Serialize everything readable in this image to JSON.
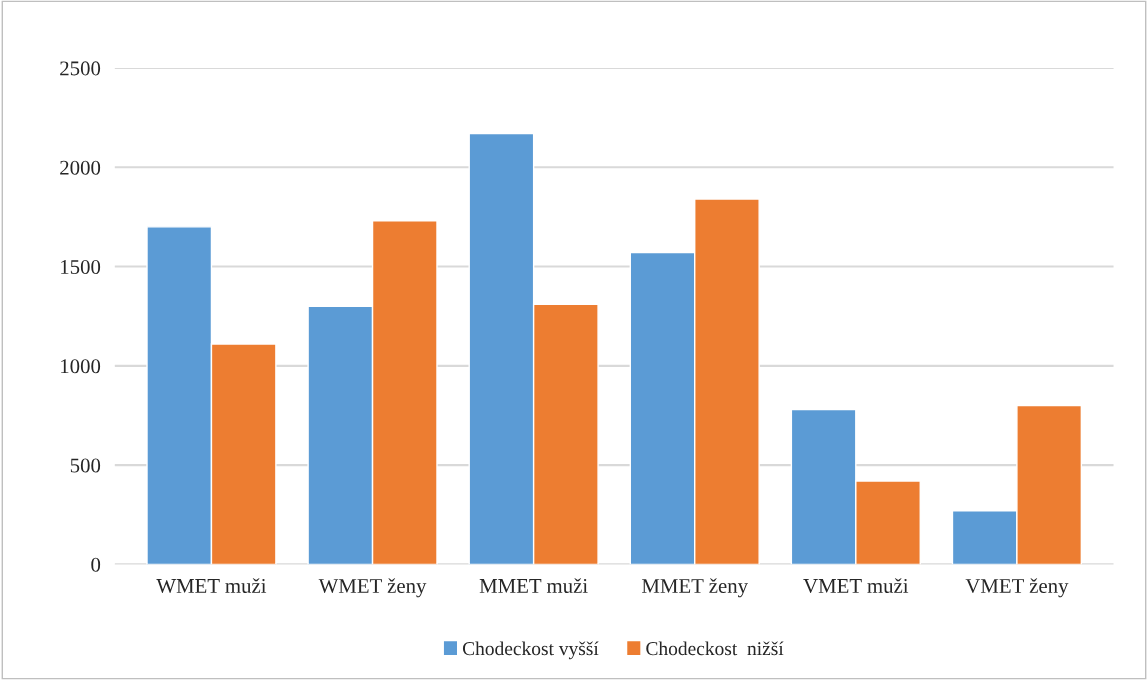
{
  "chart_data": {
    "type": "bar",
    "categories": [
      "WMET muži",
      "WMET ženy",
      "MMET muži",
      "MMET ženy",
      "VMET muži",
      "VMET ženy"
    ],
    "series": [
      {
        "name": "Chodeckost vyšší",
        "color": "#5b9bd5",
        "values": [
          1700,
          1300,
          2170,
          1570,
          780,
          270
        ]
      },
      {
        "name": "Chodeckost  nižší",
        "color": "#ed7d31",
        "values": [
          1110,
          1730,
          1310,
          1840,
          420,
          800
        ]
      }
    ],
    "ylim": [
      0,
      2500
    ],
    "yticks": [
      0,
      500,
      1000,
      1500,
      2000,
      2500
    ],
    "grid": "y",
    "legend": "bottom"
  }
}
